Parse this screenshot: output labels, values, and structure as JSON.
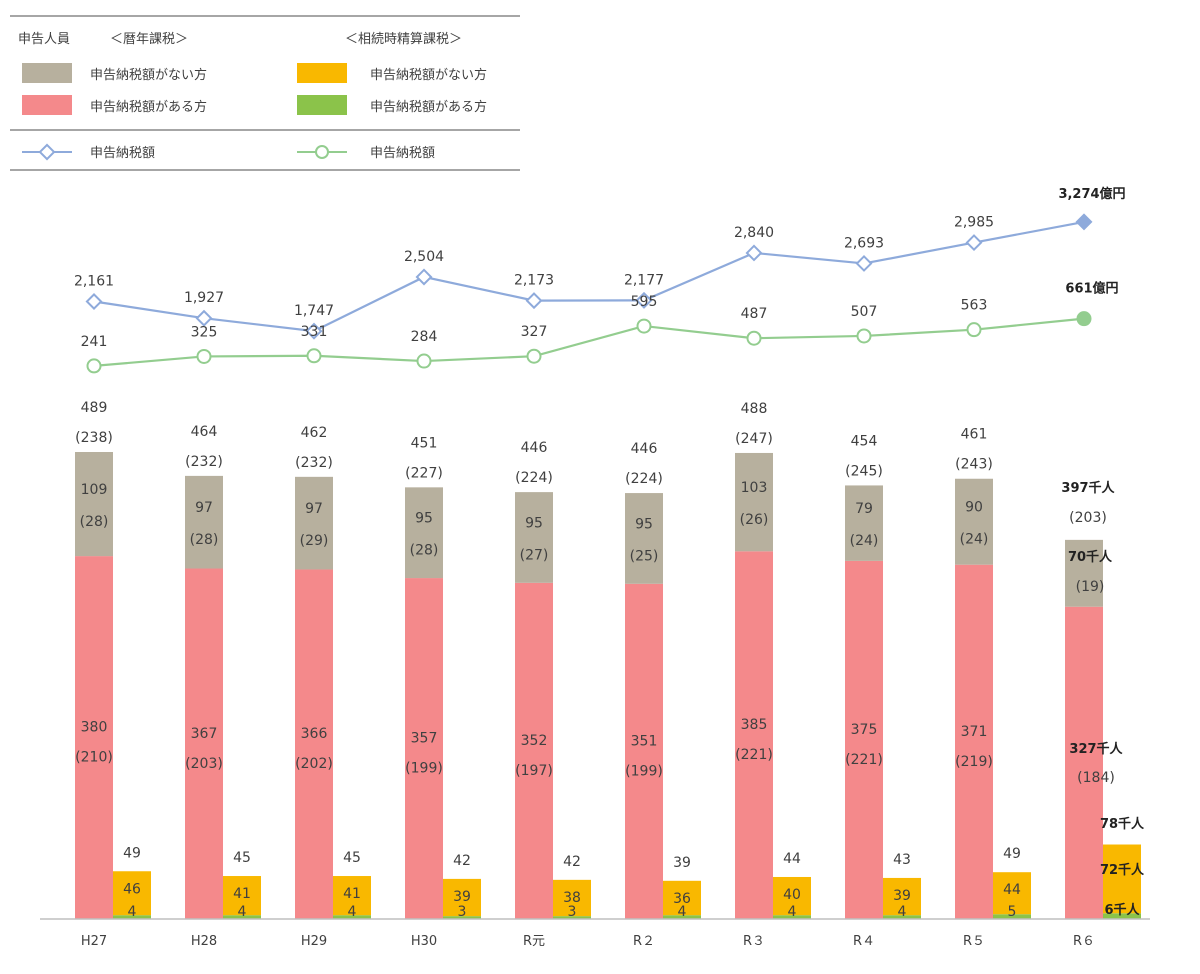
{
  "chart_data": {
    "type": "bar",
    "categories": [
      "H27",
      "H28",
      "H29",
      "H30",
      "R元",
      "R２",
      "R３",
      "R４",
      "R５",
      "R６"
    ],
    "legend": {
      "people_label": "申告人員",
      "group_annual": "＜暦年課税＞",
      "group_settlement": "＜相続時精算課税＞",
      "annual_no_tax": "申告納税額がない方",
      "annual_with_tax": "申告納税額がある方",
      "settle_no_tax": "申告納税額がない方",
      "settle_with_tax": "申告納税額がある方",
      "annual_tax_line": "申告納税額",
      "settle_tax_line": "申告納税額"
    },
    "colors": {
      "annual_no_tax": "#b7b09e",
      "annual_with_tax": "#f4898b",
      "settle_no_tax": "#f9b800",
      "settle_with_tax": "#8bc34a",
      "annual_tax_line": "#8eaadb",
      "settle_tax_line": "#93cd8f",
      "legend_rule": "#a6a6a6",
      "axis": "#bfbfbf"
    },
    "series": [
      {
        "name": "申告納税額がない方",
        "group": "暦年課税",
        "values": [
          109,
          97,
          97,
          95,
          95,
          95,
          103,
          79,
          90,
          70
        ],
        "labels": [
          "109",
          "97",
          "97",
          "95",
          "95",
          "95",
          "103",
          "79",
          "90",
          "70千人"
        ],
        "sub_labels": [
          "(28)",
          "(28)",
          "(29)",
          "(28)",
          "(27)",
          "(25)",
          "(26)",
          "(24)",
          "(24)",
          "(19)"
        ]
      },
      {
        "name": "申告納税額がある方",
        "group": "暦年課税",
        "values": [
          380,
          367,
          366,
          357,
          352,
          351,
          385,
          375,
          371,
          327
        ],
        "labels": [
          "380",
          "367",
          "366",
          "357",
          "352",
          "351",
          "385",
          "375",
          "371",
          "327千人"
        ],
        "sub_labels": [
          "(210)",
          "(203)",
          "(202)",
          "(199)",
          "(197)",
          "(199)",
          "(221)",
          "(221)",
          "(219)",
          "(184)"
        ]
      },
      {
        "name": "申告納税額がない方",
        "group": "相続時精算課税",
        "values": [
          46,
          41,
          41,
          39,
          38,
          36,
          40,
          39,
          44,
          72
        ],
        "labels": [
          "46",
          "41",
          "41",
          "39",
          "38",
          "36",
          "40",
          "39",
          "44",
          "72千人"
        ]
      },
      {
        "name": "申告納税額がある方",
        "group": "相続時精算課税",
        "values": [
          4,
          4,
          4,
          3,
          3,
          4,
          4,
          4,
          5,
          6
        ],
        "labels": [
          "4",
          "4",
          "4",
          "3",
          "3",
          "4",
          "4",
          "4",
          "5",
          "6千人"
        ]
      },
      {
        "name": "申告納税額",
        "group": "暦年課税",
        "kind": "line",
        "values": [
          2161,
          1927,
          1747,
          2504,
          2173,
          2177,
          2840,
          2693,
          2985,
          3274
        ],
        "labels": [
          "2,161",
          "1,927",
          "1,747",
          "2,504",
          "2,173",
          "2,177",
          "2,840",
          "2,693",
          "2,985",
          "3,274億円"
        ]
      },
      {
        "name": "申告納税額",
        "group": "相続時精算課税",
        "kind": "line",
        "values": [
          241,
          325,
          331,
          284,
          327,
          595,
          487,
          507,
          563,
          661
        ],
        "labels": [
          "241",
          "325",
          "331",
          "284",
          "327",
          "595",
          "487",
          "507",
          "563",
          "661億円"
        ]
      }
    ],
    "annual_totals": {
      "values": [
        489,
        464,
        462,
        451,
        446,
        446,
        488,
        454,
        461,
        397
      ],
      "labels": [
        "489",
        "464",
        "462",
        "451",
        "446",
        "446",
        "488",
        "454",
        "461",
        "397千人"
      ],
      "sub_labels": [
        "(238)",
        "(232)",
        "(232)",
        "(227)",
        "(224)",
        "(224)",
        "(247)",
        "(245)",
        "(243)",
        "(203)"
      ]
    },
    "settlement_totals": {
      "values": [
        49,
        45,
        45,
        42,
        42,
        39,
        44,
        43,
        49,
        78
      ],
      "labels": [
        "49",
        "45",
        "45",
        "42",
        "42",
        "39",
        "44",
        "43",
        "49",
        "78千人"
      ]
    }
  }
}
